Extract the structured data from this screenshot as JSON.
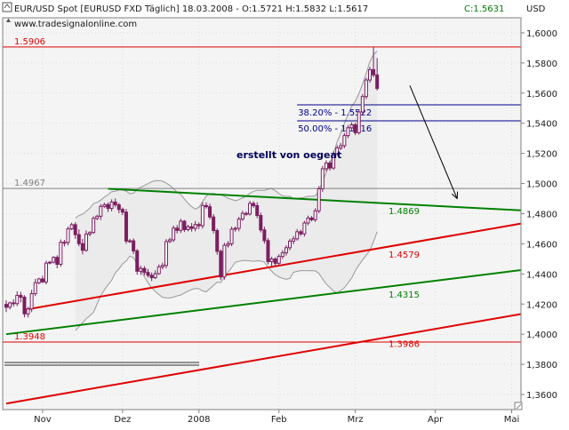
{
  "header": {
    "title": "EUR/USD Spot [EURUSD FXD  Täglich] 18.03.2008 - O:1.5721 H:1.5832 L:1.5617",
    "close_label": "C:1.5631",
    "source": "www.tradesignalonline.com",
    "currency": "USD",
    "annotation": "erstellt von oegeat"
  },
  "colors": {
    "plot_bg": "#f4f4f4",
    "band_fill": "#ebebeb",
    "band_line": "#999999",
    "candle": "#7a1f60",
    "red_line": "#e00000",
    "green_line": "#008000",
    "fib_line": "#00008b",
    "grid": "#dcdcdc"
  },
  "chart_data": {
    "type": "candlestick",
    "instrument": "EUR/USD Spot",
    "period": "Täglich",
    "date": "18.03.2008",
    "ohlc_last": {
      "open": 1.5721,
      "high": 1.5832,
      "low": 1.5617,
      "close": 1.5631
    },
    "ylim": [
      1.35,
      1.61
    ],
    "y_ticks": [
      "1,6000",
      "1,5800",
      "1,5600",
      "1,5400",
      "1,5200",
      "1,5000",
      "1,4800",
      "1,4600",
      "1,4400",
      "1,4200",
      "1,4000",
      "1,3800",
      "1,3600"
    ],
    "y_tick_values": [
      1.6,
      1.58,
      1.56,
      1.54,
      1.52,
      1.5,
      1.48,
      1.46,
      1.44,
      1.42,
      1.4,
      1.38,
      1.36
    ],
    "x_ticks": [
      "Nov",
      "Dez",
      "2008",
      "Feb",
      "Mrz",
      "Apr",
      "Mai"
    ],
    "x_tick_index": [
      10,
      32,
      53,
      75,
      96,
      118,
      139
    ],
    "n_slots": 143,
    "levels": [
      {
        "label": "1.5906",
        "value": 1.5906,
        "color": "red"
      },
      {
        "label": "1.4967",
        "value": 1.4967,
        "color": "gray"
      },
      {
        "label": "1.3948",
        "value": 1.3948,
        "color": "red"
      }
    ],
    "trendline_labels": [
      {
        "label": "1.4869",
        "value": 1.4869,
        "color": "green"
      },
      {
        "label": "1.4579",
        "value": 1.4579,
        "color": "red"
      },
      {
        "label": "1.4315",
        "value": 1.4315,
        "color": "green"
      },
      {
        "label": "1.3986",
        "value": 1.3986,
        "color": "red"
      }
    ],
    "fibonacci": [
      {
        "label": "38.20% - 1.5522",
        "value": 1.5522
      },
      {
        "label": "50.00% - 1.5416",
        "value": 1.5416
      }
    ],
    "trendlines": [
      {
        "color": "green",
        "from": [
          28,
          1.4965
        ],
        "to": [
          143,
          1.482
        ]
      },
      {
        "color": "red",
        "from": [
          5,
          1.4162
        ],
        "to": [
          143,
          1.474
        ]
      },
      {
        "color": "green",
        "from": [
          0,
          1.4
        ],
        "to": [
          143,
          1.443
        ]
      },
      {
        "color": "red",
        "from": [
          0,
          1.354
        ],
        "to": [
          143,
          1.414
        ]
      }
    ],
    "forecast_arrow": {
      "from": [
        111,
        1.565
      ],
      "to": [
        124,
        1.49
      ]
    },
    "candles": [
      {
        "i": 0,
        "o": 1.4198,
        "h": 1.4225,
        "l": 1.4147,
        "c": 1.4179
      },
      {
        "i": 1,
        "o": 1.4179,
        "h": 1.4216,
        "l": 1.4165,
        "c": 1.4208
      },
      {
        "i": 2,
        "o": 1.4208,
        "h": 1.4232,
        "l": 1.4183,
        "c": 1.4203
      },
      {
        "i": 3,
        "o": 1.4203,
        "h": 1.4285,
        "l": 1.4187,
        "c": 1.4258
      },
      {
        "i": 4,
        "o": 1.4258,
        "h": 1.4282,
        "l": 1.4211,
        "c": 1.4246
      },
      {
        "i": 5,
        "o": 1.4246,
        "h": 1.4259,
        "l": 1.4112,
        "c": 1.4135
      },
      {
        "i": 6,
        "o": 1.4135,
        "h": 1.4182,
        "l": 1.4112,
        "c": 1.4168
      },
      {
        "i": 7,
        "o": 1.4168,
        "h": 1.4295,
        "l": 1.4146,
        "c": 1.4269
      },
      {
        "i": 8,
        "o": 1.4269,
        "h": 1.4368,
        "l": 1.4253,
        "c": 1.4342
      },
      {
        "i": 9,
        "o": 1.4342,
        "h": 1.4375,
        "l": 1.4331,
        "c": 1.4367
      },
      {
        "i": 10,
        "o": 1.4367,
        "h": 1.4388,
        "l": 1.434,
        "c": 1.4347
      },
      {
        "i": 11,
        "o": 1.4347,
        "h": 1.4488,
        "l": 1.4331,
        "c": 1.4472
      },
      {
        "i": 12,
        "o": 1.4472,
        "h": 1.4487,
        "l": 1.4464,
        "c": 1.4478
      },
      {
        "i": 13,
        "o": 1.4478,
        "h": 1.4518,
        "l": 1.4469,
        "c": 1.451
      },
      {
        "i": 14,
        "o": 1.451,
        "h": 1.4524,
        "l": 1.4437,
        "c": 1.4464
      },
      {
        "i": 15,
        "o": 1.4464,
        "h": 1.4629,
        "l": 1.4448,
        "c": 1.461
      },
      {
        "i": 16,
        "o": 1.461,
        "h": 1.4626,
        "l": 1.4583,
        "c": 1.4609
      },
      {
        "i": 17,
        "o": 1.4609,
        "h": 1.4714,
        "l": 1.459,
        "c": 1.4699
      },
      {
        "i": 18,
        "o": 1.4699,
        "h": 1.474,
        "l": 1.469,
        "c": 1.4727
      },
      {
        "i": 19,
        "o": 1.4727,
        "h": 1.4743,
        "l": 1.4633,
        "c": 1.4661
      },
      {
        "i": 20,
        "o": 1.4661,
        "h": 1.4696,
        "l": 1.4584,
        "c": 1.4601
      },
      {
        "i": 21,
        "o": 1.4601,
        "h": 1.4632,
        "l": 1.453,
        "c": 1.4557
      },
      {
        "i": 22,
        "o": 1.4557,
        "h": 1.4689,
        "l": 1.4547,
        "c": 1.4665
      },
      {
        "i": 23,
        "o": 1.4665,
        "h": 1.4684,
        "l": 1.465,
        "c": 1.4675
      },
      {
        "i": 24,
        "o": 1.4675,
        "h": 1.4782,
        "l": 1.4666,
        "c": 1.4769
      },
      {
        "i": 25,
        "o": 1.4769,
        "h": 1.4793,
        "l": 1.4756,
        "c": 1.4783
      },
      {
        "i": 26,
        "o": 1.4783,
        "h": 1.4864,
        "l": 1.4758,
        "c": 1.4848
      },
      {
        "i": 27,
        "o": 1.4848,
        "h": 1.4872,
        "l": 1.4839,
        "c": 1.486
      },
      {
        "i": 28,
        "o": 1.486,
        "h": 1.4874,
        "l": 1.4811,
        "c": 1.4835
      },
      {
        "i": 29,
        "o": 1.4835,
        "h": 1.4895,
        "l": 1.4815,
        "c": 1.4877
      },
      {
        "i": 30,
        "o": 1.4877,
        "h": 1.4901,
        "l": 1.4843,
        "c": 1.4859
      },
      {
        "i": 31,
        "o": 1.4859,
        "h": 1.4871,
        "l": 1.4803,
        "c": 1.4828
      },
      {
        "i": 32,
        "o": 1.4828,
        "h": 1.484,
        "l": 1.479,
        "c": 1.481
      },
      {
        "i": 33,
        "o": 1.481,
        "h": 1.4831,
        "l": 1.46,
        "c": 1.4618
      },
      {
        "i": 34,
        "o": 1.4618,
        "h": 1.4633,
        "l": 1.4605,
        "c": 1.462
      },
      {
        "i": 35,
        "o": 1.462,
        "h": 1.4636,
        "l": 1.4532,
        "c": 1.4553
      },
      {
        "i": 36,
        "o": 1.4553,
        "h": 1.4566,
        "l": 1.4395,
        "c": 1.4418
      },
      {
        "i": 37,
        "o": 1.4418,
        "h": 1.4454,
        "l": 1.4393,
        "c": 1.4436
      },
      {
        "i": 38,
        "o": 1.4436,
        "h": 1.4452,
        "l": 1.4391,
        "c": 1.441
      },
      {
        "i": 39,
        "o": 1.441,
        "h": 1.4433,
        "l": 1.4377,
        "c": 1.4391
      },
      {
        "i": 40,
        "o": 1.4391,
        "h": 1.4409,
        "l": 1.4353,
        "c": 1.4375
      },
      {
        "i": 41,
        "o": 1.4375,
        "h": 1.4424,
        "l": 1.4366,
        "c": 1.4402
      },
      {
        "i": 42,
        "o": 1.4402,
        "h": 1.4463,
        "l": 1.4394,
        "c": 1.4447
      },
      {
        "i": 43,
        "o": 1.4447,
        "h": 1.4475,
        "l": 1.4431,
        "c": 1.4457
      },
      {
        "i": 44,
        "o": 1.4457,
        "h": 1.4631,
        "l": 1.4438,
        "c": 1.4615
      },
      {
        "i": 45,
        "o": 1.4615,
        "h": 1.464,
        "l": 1.4605,
        "c": 1.4626
      },
      {
        "i": 46,
        "o": 1.4626,
        "h": 1.4721,
        "l": 1.4611,
        "c": 1.4704
      },
      {
        "i": 47,
        "o": 1.4704,
        "h": 1.4725,
        "l": 1.4668,
        "c": 1.4689
      },
      {
        "i": 48,
        "o": 1.4689,
        "h": 1.4766,
        "l": 1.4672,
        "c": 1.475
      },
      {
        "i": 49,
        "o": 1.475,
        "h": 1.4758,
        "l": 1.4678,
        "c": 1.4694
      },
      {
        "i": 50,
        "o": 1.4694,
        "h": 1.4726,
        "l": 1.4683,
        "c": 1.4713
      },
      {
        "i": 51,
        "o": 1.4713,
        "h": 1.4738,
        "l": 1.4681,
        "c": 1.4702
      },
      {
        "i": 52,
        "o": 1.4702,
        "h": 1.4751,
        "l": 1.4683,
        "c": 1.4728
      },
      {
        "i": 53,
        "o": 1.4728,
        "h": 1.4742,
        "l": 1.4698,
        "c": 1.472
      },
      {
        "i": 54,
        "o": 1.472,
        "h": 1.4876,
        "l": 1.4701,
        "c": 1.4854
      },
      {
        "i": 55,
        "o": 1.4854,
        "h": 1.4875,
        "l": 1.4833,
        "c": 1.4846
      },
      {
        "i": 56,
        "o": 1.4846,
        "h": 1.4867,
        "l": 1.4763,
        "c": 1.4778
      },
      {
        "i": 57,
        "o": 1.4778,
        "h": 1.4797,
        "l": 1.4669,
        "c": 1.4688
      },
      {
        "i": 58,
        "o": 1.4688,
        "h": 1.4701,
        "l": 1.4528,
        "c": 1.455
      },
      {
        "i": 59,
        "o": 1.455,
        "h": 1.4563,
        "l": 1.436,
        "c": 1.438
      },
      {
        "i": 60,
        "o": 1.438,
        "h": 1.4607,
        "l": 1.4362,
        "c": 1.459
      },
      {
        "i": 61,
        "o": 1.459,
        "h": 1.4618,
        "l": 1.4575,
        "c": 1.46
      },
      {
        "i": 62,
        "o": 1.46,
        "h": 1.4714,
        "l": 1.4584,
        "c": 1.4697
      },
      {
        "i": 63,
        "o": 1.4697,
        "h": 1.4713,
        "l": 1.468,
        "c": 1.4703
      },
      {
        "i": 64,
        "o": 1.4703,
        "h": 1.4778,
        "l": 1.4683,
        "c": 1.4764
      },
      {
        "i": 65,
        "o": 1.4764,
        "h": 1.4819,
        "l": 1.4752,
        "c": 1.4802
      },
      {
        "i": 66,
        "o": 1.4802,
        "h": 1.4813,
        "l": 1.4784,
        "c": 1.4797
      },
      {
        "i": 67,
        "o": 1.4797,
        "h": 1.4885,
        "l": 1.4788,
        "c": 1.4868
      },
      {
        "i": 68,
        "o": 1.4868,
        "h": 1.4882,
        "l": 1.4839,
        "c": 1.4853
      },
      {
        "i": 69,
        "o": 1.4853,
        "h": 1.4875,
        "l": 1.477,
        "c": 1.4788
      },
      {
        "i": 70,
        "o": 1.4788,
        "h": 1.4807,
        "l": 1.4675,
        "c": 1.4692
      },
      {
        "i": 71,
        "o": 1.4692,
        "h": 1.4714,
        "l": 1.4601,
        "c": 1.4621
      },
      {
        "i": 72,
        "o": 1.4621,
        "h": 1.4638,
        "l": 1.4464,
        "c": 1.4482
      },
      {
        "i": 73,
        "o": 1.4482,
        "h": 1.4514,
        "l": 1.4444,
        "c": 1.4499
      },
      {
        "i": 74,
        "o": 1.4499,
        "h": 1.4511,
        "l": 1.4454,
        "c": 1.4471
      },
      {
        "i": 75,
        "o": 1.4471,
        "h": 1.453,
        "l": 1.4457,
        "c": 1.4516
      },
      {
        "i": 76,
        "o": 1.4516,
        "h": 1.4557,
        "l": 1.45,
        "c": 1.454
      },
      {
        "i": 77,
        "o": 1.454,
        "h": 1.459,
        "l": 1.4522,
        "c": 1.4574
      },
      {
        "i": 78,
        "o": 1.4574,
        "h": 1.4634,
        "l": 1.4557,
        "c": 1.4618
      },
      {
        "i": 79,
        "o": 1.4618,
        "h": 1.4652,
        "l": 1.4597,
        "c": 1.4633
      },
      {
        "i": 80,
        "o": 1.4633,
        "h": 1.4698,
        "l": 1.4621,
        "c": 1.468
      },
      {
        "i": 81,
        "o": 1.468,
        "h": 1.4694,
        "l": 1.4652,
        "c": 1.4666
      },
      {
        "i": 82,
        "o": 1.4666,
        "h": 1.4752,
        "l": 1.4648,
        "c": 1.4738
      },
      {
        "i": 83,
        "o": 1.4738,
        "h": 1.4787,
        "l": 1.4723,
        "c": 1.4771
      },
      {
        "i": 84,
        "o": 1.4771,
        "h": 1.4784,
        "l": 1.4749,
        "c": 1.476
      },
      {
        "i": 85,
        "o": 1.476,
        "h": 1.4836,
        "l": 1.4745,
        "c": 1.4819
      },
      {
        "i": 86,
        "o": 1.4819,
        "h": 1.4983,
        "l": 1.4803,
        "c": 1.4965
      },
      {
        "i": 87,
        "o": 1.4965,
        "h": 1.5117,
        "l": 1.4945,
        "c": 1.5098
      },
      {
        "i": 88,
        "o": 1.5098,
        "h": 1.5154,
        "l": 1.508,
        "c": 1.5136
      },
      {
        "i": 89,
        "o": 1.5136,
        "h": 1.5152,
        "l": 1.5086,
        "c": 1.5103
      },
      {
        "i": 90,
        "o": 1.5103,
        "h": 1.5214,
        "l": 1.5091,
        "c": 1.5197
      },
      {
        "i": 91,
        "o": 1.5197,
        "h": 1.5254,
        "l": 1.5184,
        "c": 1.5236
      },
      {
        "i": 92,
        "o": 1.5236,
        "h": 1.5269,
        "l": 1.5222,
        "c": 1.5251
      },
      {
        "i": 93,
        "o": 1.5251,
        "h": 1.5336,
        "l": 1.5235,
        "c": 1.5318
      },
      {
        "i": 94,
        "o": 1.5318,
        "h": 1.5387,
        "l": 1.5301,
        "c": 1.537
      },
      {
        "i": 95,
        "o": 1.537,
        "h": 1.5406,
        "l": 1.5352,
        "c": 1.539
      },
      {
        "i": 96,
        "o": 1.539,
        "h": 1.5404,
        "l": 1.5321,
        "c": 1.5337
      },
      {
        "i": 97,
        "o": 1.5337,
        "h": 1.5493,
        "l": 1.5325,
        "c": 1.5475
      },
      {
        "i": 98,
        "o": 1.5475,
        "h": 1.5594,
        "l": 1.5458,
        "c": 1.5577
      },
      {
        "i": 99,
        "o": 1.5577,
        "h": 1.5702,
        "l": 1.556,
        "c": 1.5687
      },
      {
        "i": 100,
        "o": 1.5687,
        "h": 1.5774,
        "l": 1.5669,
        "c": 1.5756
      },
      {
        "i": 101,
        "o": 1.5756,
        "h": 1.5906,
        "l": 1.5705,
        "c": 1.5721
      },
      {
        "i": 102,
        "o": 1.5721,
        "h": 1.5832,
        "l": 1.5617,
        "c": 1.5631
      }
    ]
  }
}
